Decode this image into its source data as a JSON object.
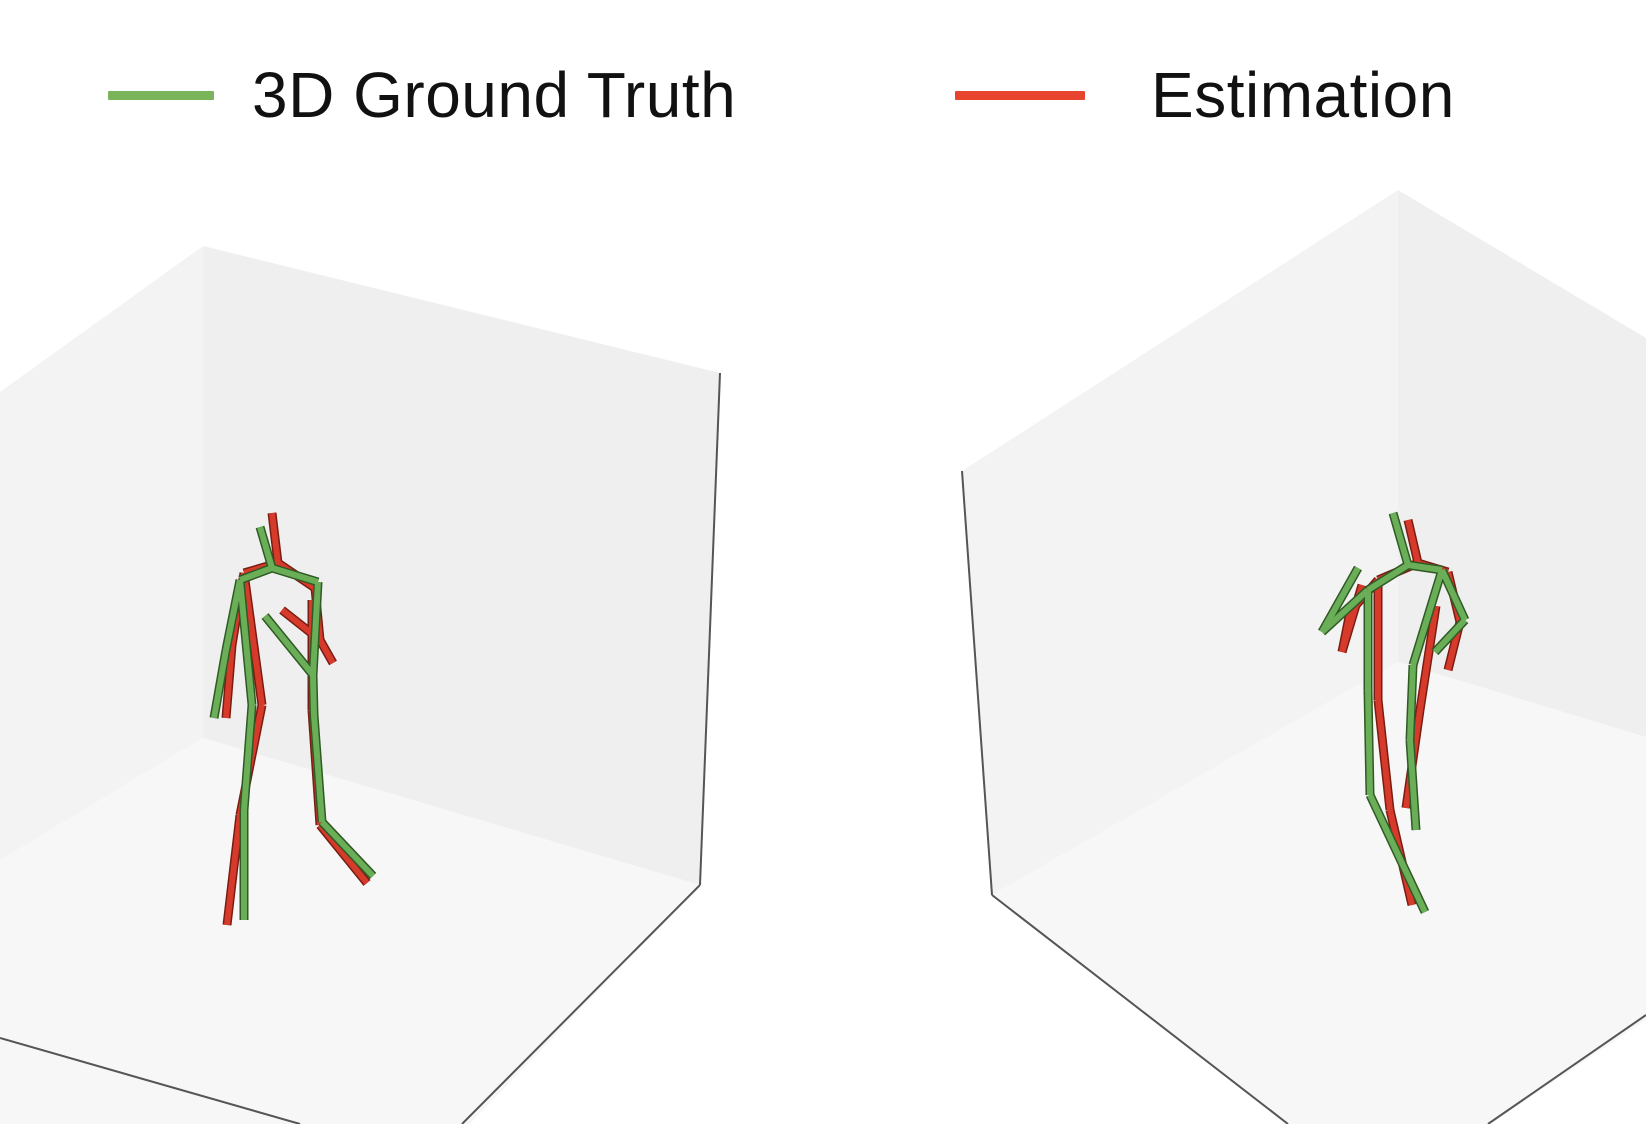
{
  "legend": {
    "ground_truth": {
      "label": "3D Ground Truth",
      "color": "#7ab55c"
    },
    "estimation": {
      "label": "Estimation",
      "color": "#e8452f"
    }
  },
  "colors": {
    "background": "#ffffff",
    "pane_back": "#efefef",
    "pane_side": "#f3f3f3",
    "pane_floor": "#f7f7f7",
    "box_edge": "#555555",
    "gt_bone": "#6aae58",
    "gt_outline": "#2f5a24",
    "est_bone": "#d63a2a",
    "est_outline": "#7a1c12"
  },
  "panels": [
    {
      "name": "left-view"
    },
    {
      "name": "right-view"
    }
  ]
}
